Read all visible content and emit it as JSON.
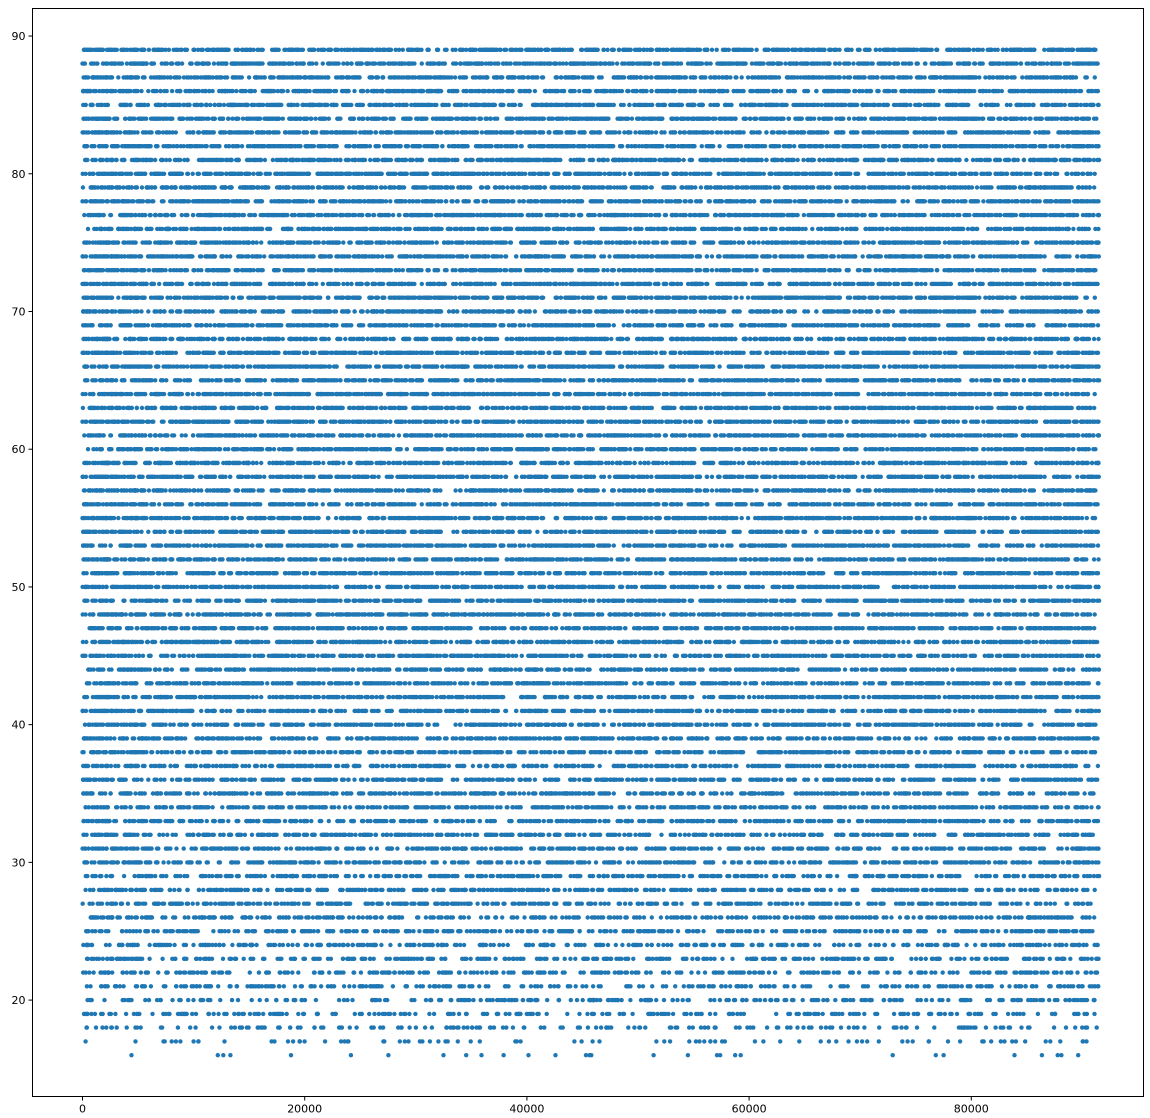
{
  "chart_data": {
    "type": "scatter",
    "title": "",
    "xlabel": "",
    "ylabel": "",
    "xlim": [
      -4500,
      95500
    ],
    "ylim": [
      13,
      92
    ],
    "x_ticks": [
      0,
      20000,
      40000,
      60000,
      80000
    ],
    "x_tick_labels": [
      "0",
      "20000",
      "40000",
      "60000",
      "80000"
    ],
    "y_ticks": [
      20,
      30,
      40,
      50,
      60,
      70,
      80,
      90
    ],
    "y_tick_labels": [
      "20",
      "30",
      "40",
      "50",
      "60",
      "70",
      "80",
      "90"
    ],
    "grid": false,
    "legend": "none",
    "marker_color": "#1f77b4",
    "series": [
      {
        "x_range": [
          0,
          91500
        ],
        "y_values_integer_range": [
          16,
          89
        ],
        "density_by_y": [
          {
            "y": 16,
            "points": 30
          },
          {
            "y": 17,
            "points": 90
          },
          {
            "y": 18,
            "points": 170
          },
          {
            "y": 19,
            "points": 220
          },
          {
            "y": 20,
            "points": 250
          },
          {
            "y": 21,
            "points": 280
          },
          {
            "y": 22,
            "points": 300
          },
          {
            "y": 23,
            "points": 320
          },
          {
            "y": 24,
            "points": 340
          },
          {
            "y": 25,
            "points": 360
          },
          {
            "y": 26,
            "points": 380
          },
          {
            "y": 27,
            "points": 390
          },
          {
            "y": 28,
            "points": 410
          },
          {
            "y": 29,
            "points": 420
          },
          {
            "y": 30,
            "points": 440
          },
          {
            "y": 31,
            "points": 450
          },
          {
            "y": 32,
            "points": 460
          },
          {
            "y": 33,
            "points": 470
          },
          {
            "y": 34,
            "points": 480
          },
          {
            "y": 35,
            "points": 490
          },
          {
            "y": 36,
            "points": 500
          },
          {
            "y": 37,
            "points": 510
          },
          {
            "y": 38,
            "points": 520
          },
          {
            "y": 39,
            "points": 530
          },
          {
            "y": 40,
            "points": 540
          },
          {
            "y": 41,
            "points": 550
          },
          {
            "y": 42,
            "points": 560
          },
          {
            "y": 43,
            "points": 570
          },
          {
            "y": 44,
            "points": 580
          },
          {
            "y": 45,
            "points": 590
          },
          {
            "y": 46,
            "points": 600
          },
          {
            "y": 47,
            "points": 610
          },
          {
            "y": 48,
            "points": 620
          },
          {
            "y": 49,
            "points": 630
          },
          {
            "y": 50,
            "points": 640
          }
        ],
        "dense_rows_above_50_points_each": 650
      }
    ]
  }
}
